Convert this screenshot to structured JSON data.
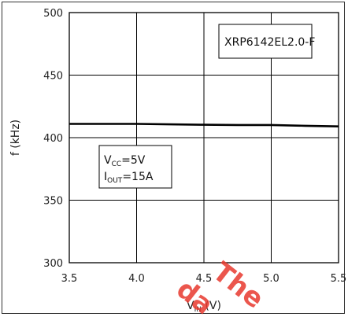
{
  "chart_data": {
    "type": "line",
    "title": "",
    "xlabel": {
      "main": "V",
      "sub": "IN",
      "rest": " (V)"
    },
    "ylabel": "f (kHz)",
    "xlim": [
      3.5,
      5.5
    ],
    "ylim": [
      300,
      500
    ],
    "xticks": [
      3.5,
      4.0,
      4.5,
      5.0,
      5.5
    ],
    "xtick_labels": [
      "3.5",
      "4.0",
      "4.5",
      "5.0",
      "5.5"
    ],
    "yticks": [
      300,
      350,
      400,
      450,
      500
    ],
    "ytick_labels": [
      "300",
      "350",
      "400",
      "450",
      "500"
    ],
    "grid": true,
    "series": [
      {
        "x": [
          3.5,
          3.75,
          4.0,
          4.25,
          4.5,
          4.75,
          5.0,
          5.25,
          5.5
        ],
        "y": [
          411,
          411,
          411,
          410.6,
          410.3,
          410.1,
          410.1,
          409.5,
          409
        ]
      }
    ],
    "annotations": {
      "part_label": "XRP6142EL2.0-F",
      "cond_vcc": {
        "main": "V",
        "sub": "CC",
        "rest": "=5V"
      },
      "cond_iout": {
        "main": "I",
        "sub": "OUT",
        "rest": "=15A"
      }
    },
    "watermark": [
      "The",
      "da"
    ],
    "colors": {
      "line": "#000000",
      "grid": "#000000",
      "watermark": "#e8392e"
    }
  }
}
